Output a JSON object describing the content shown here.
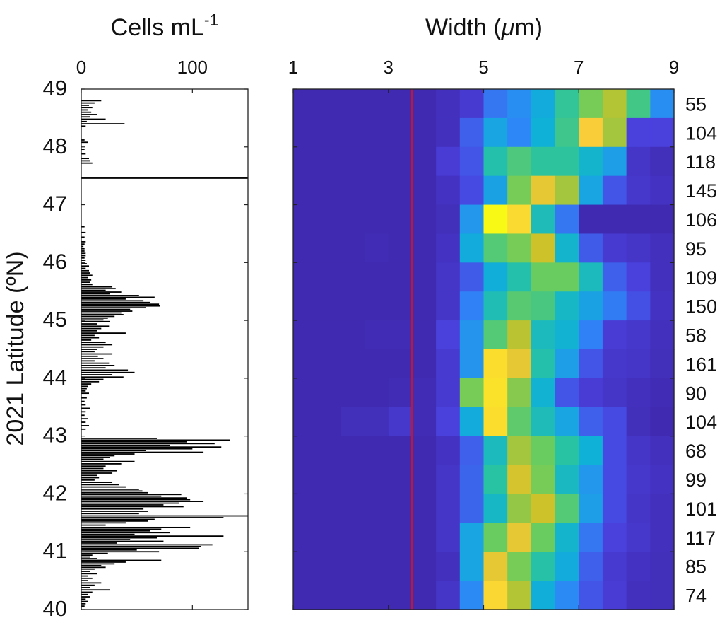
{
  "chart_data": [
    {
      "type": "bar",
      "orientation": "horizontal",
      "title": "",
      "xlabel": "Cells mL",
      "xlabel_superscript": "-1",
      "ylabel": "2021 Latitude (ºN)",
      "xlim": [
        0,
        150
      ],
      "ylim": [
        40,
        49
      ],
      "x_ticks": [
        0,
        100
      ],
      "y_ticks": [
        40,
        41,
        42,
        43,
        44,
        45,
        46,
        47,
        48,
        49
      ],
      "bar_color": "#000000",
      "series": [
        {
          "name": "",
          "points": [
            [
              48.8,
              18
            ],
            [
              48.76,
              12
            ],
            [
              48.72,
              7
            ],
            [
              48.68,
              10
            ],
            [
              48.64,
              6
            ],
            [
              48.6,
              9
            ],
            [
              48.56,
              14
            ],
            [
              48.52,
              8
            ],
            [
              48.48,
              22
            ],
            [
              48.44,
              5
            ],
            [
              48.4,
              39
            ],
            [
              48.36,
              4
            ],
            [
              48.12,
              3
            ],
            [
              48.08,
              6
            ],
            [
              47.96,
              3
            ],
            [
              47.88,
              4
            ],
            [
              47.8,
              7
            ],
            [
              47.76,
              8
            ],
            [
              47.72,
              10
            ],
            [
              47.46,
              150
            ],
            [
              46.62,
              3
            ],
            [
              46.52,
              4
            ],
            [
              46.44,
              3
            ],
            [
              46.36,
              4
            ],
            [
              46.32,
              3
            ],
            [
              46.28,
              2
            ],
            [
              46.24,
              3
            ],
            [
              46.2,
              3
            ],
            [
              46.16,
              4
            ],
            [
              46.12,
              4
            ],
            [
              46.08,
              3
            ],
            [
              46.04,
              4
            ],
            [
              45.98,
              5
            ],
            [
              45.94,
              7
            ],
            [
              45.9,
              4
            ],
            [
              45.86,
              7
            ],
            [
              45.82,
              8
            ],
            [
              45.78,
              10
            ],
            [
              45.74,
              6
            ],
            [
              45.7,
              9
            ],
            [
              45.66,
              8
            ],
            [
              45.62,
              10
            ],
            [
              45.58,
              28
            ],
            [
              45.55,
              31
            ],
            [
              45.52,
              22
            ],
            [
              45.49,
              36
            ],
            [
              45.46,
              26
            ],
            [
              45.43,
              52
            ],
            [
              45.4,
              66
            ],
            [
              45.37,
              40
            ],
            [
              45.34,
              56
            ],
            [
              45.31,
              62
            ],
            [
              45.28,
              70
            ],
            [
              45.25,
              71
            ],
            [
              45.22,
              58
            ],
            [
              45.19,
              44
            ],
            [
              45.16,
              46
            ],
            [
              45.13,
              36
            ],
            [
              45.1,
              38
            ],
            [
              45.07,
              30
            ],
            [
              45.04,
              24
            ],
            [
              45.01,
              20
            ],
            [
              44.98,
              26
            ],
            [
              44.94,
              14
            ],
            [
              44.9,
              25
            ],
            [
              44.86,
              18
            ],
            [
              44.82,
              14
            ],
            [
              44.78,
              40
            ],
            [
              44.74,
              12
            ],
            [
              44.7,
              16
            ],
            [
              44.66,
              9
            ],
            [
              44.62,
              22
            ],
            [
              44.58,
              28
            ],
            [
              44.54,
              20
            ],
            [
              44.5,
              14
            ],
            [
              44.46,
              12
            ],
            [
              44.42,
              28
            ],
            [
              44.38,
              15
            ],
            [
              44.34,
              20
            ],
            [
              44.3,
              12
            ],
            [
              44.26,
              25
            ],
            [
              44.22,
              30
            ],
            [
              44.18,
              22
            ],
            [
              44.14,
              42
            ],
            [
              44.1,
              48
            ],
            [
              44.06,
              28
            ],
            [
              44.02,
              38
            ],
            [
              43.98,
              20
            ],
            [
              43.94,
              16
            ],
            [
              43.9,
              9
            ],
            [
              43.86,
              6
            ],
            [
              43.82,
              5
            ],
            [
              43.78,
              4
            ],
            [
              43.74,
              7
            ],
            [
              43.66,
              5
            ],
            [
              43.6,
              3
            ],
            [
              43.54,
              4
            ],
            [
              43.48,
              8
            ],
            [
              43.42,
              4
            ],
            [
              43.36,
              3
            ],
            [
              43.3,
              6
            ],
            [
              43.24,
              4
            ],
            [
              43.18,
              7
            ],
            [
              43.12,
              4
            ],
            [
              42.96,
              68
            ],
            [
              42.93,
              134
            ],
            [
              42.9,
              95
            ],
            [
              42.87,
              120
            ],
            [
              42.84,
              80
            ],
            [
              42.81,
              126
            ],
            [
              42.78,
              100
            ],
            [
              42.75,
              58
            ],
            [
              42.72,
              110
            ],
            [
              42.69,
              48
            ],
            [
              42.66,
              30
            ],
            [
              42.63,
              26
            ],
            [
              42.6,
              20
            ],
            [
              42.56,
              48
            ],
            [
              42.52,
              36
            ],
            [
              42.48,
              22
            ],
            [
              42.44,
              20
            ],
            [
              42.4,
              32
            ],
            [
              42.36,
              28
            ],
            [
              42.32,
              14
            ],
            [
              42.28,
              16
            ],
            [
              42.24,
              12
            ],
            [
              42.2,
              28
            ],
            [
              42.16,
              34
            ],
            [
              42.12,
              40
            ],
            [
              42.08,
              52
            ],
            [
              42.05,
              55
            ],
            [
              42.02,
              60
            ],
            [
              41.99,
              90
            ],
            [
              41.96,
              72
            ],
            [
              41.93,
              95
            ],
            [
              41.9,
              98
            ],
            [
              41.87,
              110
            ],
            [
              41.84,
              88
            ],
            [
              41.81,
              74
            ],
            [
              41.78,
              92
            ],
            [
              41.74,
              56
            ],
            [
              41.7,
              60
            ],
            [
              41.66,
              52
            ],
            [
              41.62,
              150
            ],
            [
              41.59,
              128
            ],
            [
              41.56,
              66
            ],
            [
              41.53,
              60
            ],
            [
              41.5,
              40
            ],
            [
              41.46,
              22
            ],
            [
              41.42,
              98
            ],
            [
              41.39,
              72
            ],
            [
              41.36,
              62
            ],
            [
              41.33,
              80
            ],
            [
              41.3,
              48
            ],
            [
              41.27,
              128
            ],
            [
              41.24,
              68
            ],
            [
              41.21,
              44
            ],
            [
              41.18,
              74
            ],
            [
              41.15,
              32
            ],
            [
              41.12,
              118
            ],
            [
              41.09,
              108
            ],
            [
              41.06,
              106
            ],
            [
              41.03,
              50
            ],
            [
              41.0,
              70
            ],
            [
              40.97,
              24
            ],
            [
              40.94,
              10
            ],
            [
              40.91,
              8
            ],
            [
              40.88,
              14
            ],
            [
              40.85,
              72
            ],
            [
              40.82,
              40
            ],
            [
              40.79,
              30
            ],
            [
              40.76,
              18
            ],
            [
              40.73,
              22
            ],
            [
              40.7,
              12
            ],
            [
              40.66,
              8
            ],
            [
              40.62,
              14
            ],
            [
              40.58,
              6
            ],
            [
              40.54,
              10
            ],
            [
              40.5,
              6
            ],
            [
              40.46,
              18
            ],
            [
              40.42,
              12
            ],
            [
              40.38,
              8
            ],
            [
              40.34,
              26
            ],
            [
              40.3,
              10
            ],
            [
              40.26,
              6
            ],
            [
              40.22,
              8
            ],
            [
              40.18,
              4
            ],
            [
              40.14,
              6
            ],
            [
              40.1,
              4
            ],
            [
              40.06,
              3
            ]
          ]
        }
      ]
    },
    {
      "type": "heatmap",
      "title": "",
      "xlabel": "Width (",
      "xlabel_symbol": "μ",
      "xlabel_suffix": "m)",
      "ylabel": "",
      "xlim": [
        1,
        9
      ],
      "ylim": [
        40,
        49
      ],
      "x_ticks": [
        1,
        3,
        5,
        7,
        9
      ],
      "colormap": [
        "#3e26a8",
        "#4a42df",
        "#2e87f7",
        "#0fb0d8",
        "#28c3a3",
        "#6ccc5d",
        "#c9c129",
        "#fbce3a",
        "#f9f916"
      ],
      "value_range": [
        0,
        1
      ],
      "x_bins": [
        1.25,
        1.75,
        2.25,
        2.75,
        3.25,
        3.75,
        4.25,
        4.75,
        5.25,
        5.75,
        6.25,
        6.75,
        7.25,
        7.75,
        8.25,
        8.75
      ],
      "row_latitudes": [
        48.75,
        48.25,
        47.75,
        47.25,
        46.75,
        46.25,
        45.75,
        45.25,
        44.75,
        44.25,
        43.75,
        43.25,
        42.75,
        42.25,
        41.75,
        41.25,
        40.75,
        40.25
      ],
      "row_counts": [
        "55",
        "104",
        "118",
        "145",
        "106",
        "95",
        "109",
        "150",
        "58",
        "161",
        "90",
        "104",
        "68",
        "99",
        "101",
        "117",
        "85",
        "74"
      ],
      "grid": [
        [
          0.02,
          0.02,
          0.02,
          0.02,
          0.02,
          0.02,
          0.05,
          0.09,
          0.22,
          0.27,
          0.36,
          0.52,
          0.64,
          0.72,
          0.55,
          0.27
        ],
        [
          0.02,
          0.02,
          0.02,
          0.02,
          0.02,
          0.02,
          0.05,
          0.18,
          0.34,
          0.25,
          0.38,
          0.54,
          0.87,
          0.7,
          0.12,
          0.12
        ],
        [
          0.02,
          0.02,
          0.02,
          0.02,
          0.02,
          0.02,
          0.1,
          0.16,
          0.48,
          0.57,
          0.51,
          0.51,
          0.4,
          0.32,
          0.07,
          0.04
        ],
        [
          0.02,
          0.02,
          0.02,
          0.02,
          0.02,
          0.02,
          0.06,
          0.14,
          0.33,
          0.64,
          0.82,
          0.7,
          0.34,
          0.16,
          0.08,
          0.06
        ],
        [
          0.02,
          0.02,
          0.02,
          0.02,
          0.02,
          0.02,
          0.04,
          0.3,
          1.0,
          0.91,
          0.45,
          0.22,
          0.02,
          0.02,
          0.02,
          0.02
        ],
        [
          0.02,
          0.02,
          0.02,
          0.03,
          0.02,
          0.02,
          0.06,
          0.36,
          0.58,
          0.64,
          0.76,
          0.4,
          0.17,
          0.09,
          0.07,
          0.05
        ],
        [
          0.02,
          0.02,
          0.02,
          0.02,
          0.02,
          0.02,
          0.07,
          0.17,
          0.37,
          0.48,
          0.62,
          0.62,
          0.44,
          0.18,
          0.12,
          0.05
        ],
        [
          0.02,
          0.02,
          0.02,
          0.02,
          0.02,
          0.02,
          0.07,
          0.24,
          0.46,
          0.59,
          0.56,
          0.42,
          0.33,
          0.23,
          0.15,
          0.06
        ],
        [
          0.02,
          0.02,
          0.02,
          0.03,
          0.03,
          0.02,
          0.12,
          0.29,
          0.58,
          0.73,
          0.44,
          0.39,
          0.24,
          0.1,
          0.08,
          0.05
        ],
        [
          0.02,
          0.02,
          0.02,
          0.02,
          0.02,
          0.02,
          0.09,
          0.29,
          0.92,
          0.82,
          0.48,
          0.32,
          0.16,
          0.08,
          0.07,
          0.04
        ],
        [
          0.02,
          0.02,
          0.02,
          0.02,
          0.03,
          0.03,
          0.09,
          0.64,
          0.93,
          0.66,
          0.39,
          0.16,
          0.1,
          0.07,
          0.05,
          0.03
        ],
        [
          0.02,
          0.02,
          0.04,
          0.04,
          0.08,
          0.03,
          0.12,
          0.36,
          0.92,
          0.6,
          0.45,
          0.34,
          0.18,
          0.14,
          0.04,
          0.02
        ],
        [
          0.02,
          0.02,
          0.02,
          0.02,
          0.02,
          0.02,
          0.06,
          0.18,
          0.44,
          0.7,
          0.62,
          0.5,
          0.38,
          0.14,
          0.07,
          0.05
        ],
        [
          0.02,
          0.02,
          0.02,
          0.02,
          0.02,
          0.02,
          0.07,
          0.19,
          0.5,
          0.78,
          0.64,
          0.43,
          0.3,
          0.14,
          0.08,
          0.06
        ],
        [
          0.02,
          0.02,
          0.02,
          0.02,
          0.02,
          0.02,
          0.07,
          0.19,
          0.42,
          0.68,
          0.76,
          0.58,
          0.32,
          0.14,
          0.07,
          0.05
        ],
        [
          0.02,
          0.02,
          0.02,
          0.02,
          0.02,
          0.02,
          0.07,
          0.34,
          0.62,
          0.82,
          0.62,
          0.4,
          0.22,
          0.12,
          0.08,
          0.05
        ],
        [
          0.02,
          0.02,
          0.02,
          0.02,
          0.02,
          0.02,
          0.05,
          0.34,
          0.82,
          0.64,
          0.49,
          0.36,
          0.18,
          0.09,
          0.06,
          0.04
        ],
        [
          0.02,
          0.02,
          0.02,
          0.02,
          0.02,
          0.02,
          0.07,
          0.26,
          0.9,
          0.72,
          0.37,
          0.26,
          0.16,
          0.1,
          0.05,
          0.04
        ]
      ],
      "reference_line": {
        "x": 3.5,
        "color": "#c01736"
      }
    }
  ]
}
